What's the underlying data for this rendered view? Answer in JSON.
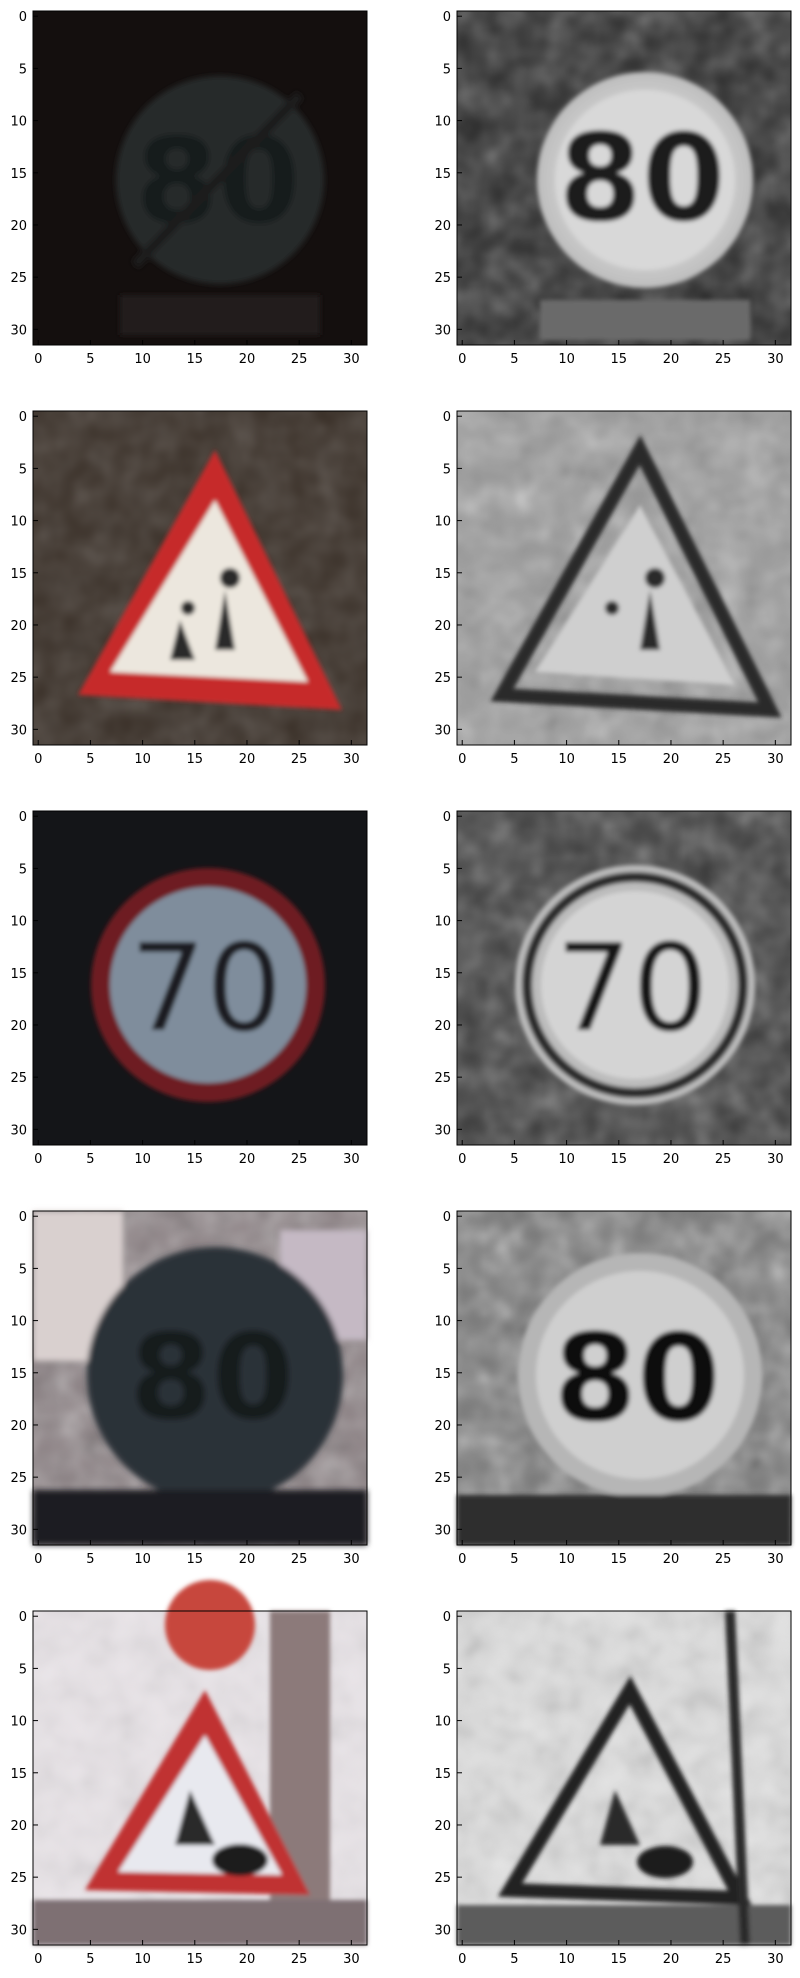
{
  "figure": {
    "x_ticks": [
      "0",
      "5",
      "10",
      "15",
      "20",
      "25",
      "30"
    ],
    "y_ticks": [
      "0",
      "5",
      "10",
      "15",
      "20",
      "25",
      "30"
    ],
    "panels": [
      {
        "row": 1,
        "col": "color",
        "sign_shape": "circle",
        "sign_text": "80",
        "variant": "end-of-limit",
        "background": "#140f0e"
      },
      {
        "row": 1,
        "col": "gray",
        "sign_shape": "circle",
        "sign_text": "80",
        "variant": "end-of-limit",
        "background": "#2a2a2a"
      },
      {
        "row": 2,
        "col": "color",
        "sign_shape": "triangle",
        "sign_text": "",
        "variant": "children-crossing",
        "background": "#3a3028"
      },
      {
        "row": 2,
        "col": "gray",
        "sign_shape": "triangle",
        "sign_text": "",
        "variant": "children-crossing",
        "background": "#9a9a9a"
      },
      {
        "row": 3,
        "col": "color",
        "sign_shape": "circle",
        "sign_text": "70",
        "variant": "speed-limit",
        "background": "#141518"
      },
      {
        "row": 3,
        "col": "gray",
        "sign_shape": "circle",
        "sign_text": "70",
        "variant": "speed-limit",
        "background": "#3a3a3a"
      },
      {
        "row": 4,
        "col": "color",
        "sign_shape": "circle",
        "sign_text": "80",
        "variant": "end-of-limit",
        "background": "#4d4c50"
      },
      {
        "row": 4,
        "col": "gray",
        "sign_shape": "circle",
        "sign_text": "80",
        "variant": "end-of-limit",
        "background": "#777777"
      },
      {
        "row": 5,
        "col": "color",
        "sign_shape": "triangle",
        "sign_text": "",
        "variant": "road-work",
        "background": "#e9e4e8"
      },
      {
        "row": 5,
        "col": "gray",
        "sign_shape": "triangle",
        "sign_text": "",
        "variant": "road-work",
        "background": "#e0e0e0"
      }
    ]
  }
}
